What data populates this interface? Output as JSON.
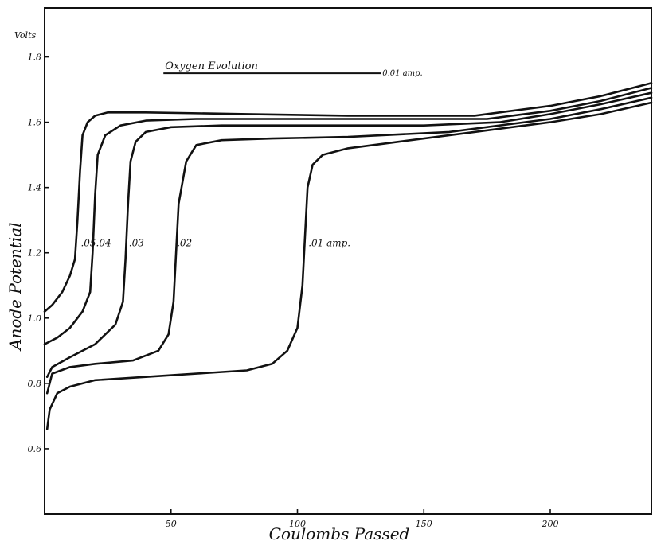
{
  "chart_data": {
    "type": "line",
    "title": "",
    "xlabel": "Coulombs Passed",
    "ylabel": "Anode Potential",
    "y_unit_label": "Volts",
    "xlim": [
      0,
      240
    ],
    "ylim": [
      0.4,
      1.95
    ],
    "grid": false,
    "x_ticks": [
      {
        "value": 50,
        "label": "50"
      },
      {
        "value": 100,
        "label": "100"
      },
      {
        "value": 150,
        "label": "150"
      },
      {
        "value": 200,
        "label": "200"
      }
    ],
    "y_ticks": [
      {
        "value": 0.6,
        "label": "0.6"
      },
      {
        "value": 0.8,
        "label": "0.8"
      },
      {
        "value": 1.0,
        "label": "1.0"
      },
      {
        "value": 1.2,
        "label": "1.2"
      },
      {
        "value": 1.4,
        "label": "1.4"
      },
      {
        "value": 1.6,
        "label": "1.6"
      },
      {
        "value": 1.8,
        "label": "1.8"
      }
    ],
    "annotation": {
      "text": "Oxygen Evolution",
      "sub_label": "0.01 amp.",
      "y": 1.75,
      "x_start": 47,
      "x_end": 133
    },
    "series": [
      {
        "name": "",
        "label": ".05",
        "label_at": [
          14,
          1.23
        ],
        "x": [
          0,
          3,
          7,
          10,
          12,
          13,
          14,
          15,
          17,
          20,
          25,
          40,
          80,
          120,
          170,
          200,
          220,
          240
        ],
        "y": [
          1.02,
          1.04,
          1.08,
          1.13,
          1.18,
          1.3,
          1.45,
          1.56,
          1.6,
          1.62,
          1.63,
          1.63,
          1.625,
          1.62,
          1.62,
          1.65,
          1.68,
          1.72
        ]
      },
      {
        "name": "",
        "label": ".04",
        "label_at": [
          20,
          1.23
        ],
        "x": [
          0,
          5,
          10,
          15,
          18,
          19,
          20,
          21,
          24,
          30,
          40,
          60,
          100,
          150,
          175,
          200,
          220,
          240
        ],
        "y": [
          0.92,
          0.94,
          0.97,
          1.02,
          1.08,
          1.2,
          1.38,
          1.5,
          1.56,
          1.59,
          1.605,
          1.61,
          1.61,
          1.61,
          1.61,
          1.635,
          1.665,
          1.705
        ]
      },
      {
        "name": "",
        "label": ".03",
        "label_at": [
          33,
          1.23
        ],
        "x": [
          1,
          3,
          10,
          20,
          28,
          31,
          32,
          33,
          34,
          36,
          40,
          50,
          70,
          100,
          150,
          180,
          200,
          220,
          240
        ],
        "y": [
          0.82,
          0.85,
          0.88,
          0.92,
          0.98,
          1.05,
          1.18,
          1.35,
          1.48,
          1.54,
          1.57,
          1.585,
          1.59,
          1.59,
          1.59,
          1.6,
          1.625,
          1.655,
          1.69
        ]
      },
      {
        "name": "",
        "label": ".02",
        "label_at": [
          52,
          1.23
        ],
        "x": [
          1,
          3,
          10,
          20,
          35,
          45,
          49,
          51,
          52,
          53,
          56,
          60,
          70,
          90,
          120,
          160,
          200,
          220,
          240
        ],
        "y": [
          0.77,
          0.83,
          0.85,
          0.86,
          0.87,
          0.9,
          0.95,
          1.05,
          1.2,
          1.35,
          1.48,
          1.53,
          1.545,
          1.55,
          1.555,
          1.57,
          1.61,
          1.64,
          1.675
        ]
      },
      {
        "name": "",
        "label": ".01 amp.",
        "label_at": [
          104,
          1.23
        ],
        "x": [
          1,
          2,
          5,
          10,
          20,
          40,
          60,
          80,
          90,
          96,
          100,
          102,
          103,
          104,
          106,
          110,
          120,
          140,
          170,
          200,
          220,
          240
        ],
        "y": [
          0.66,
          0.72,
          0.77,
          0.79,
          0.81,
          0.82,
          0.83,
          0.84,
          0.86,
          0.9,
          0.97,
          1.1,
          1.25,
          1.4,
          1.47,
          1.5,
          1.52,
          1.54,
          1.57,
          1.6,
          1.625,
          1.66
        ]
      }
    ]
  }
}
